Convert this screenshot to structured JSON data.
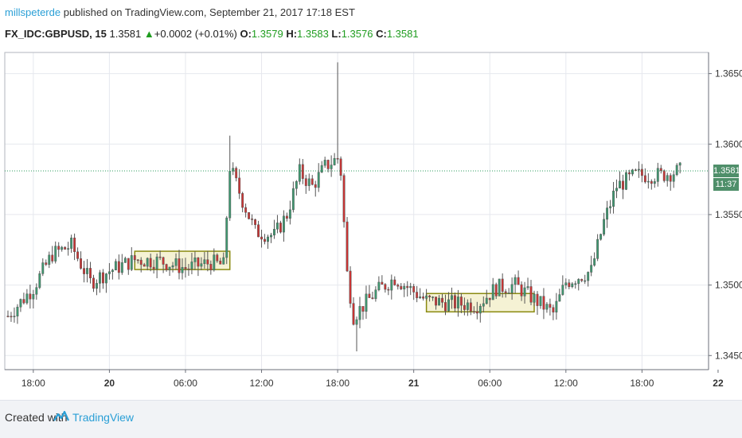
{
  "header": {
    "author": "millspeterde",
    "published_text": "published on TradingView.com, September 21, 2017 17:18 EST",
    "symbol": "FX_IDC:GBPUSD, 15",
    "last_price": "1.3581",
    "change_arrow": "▲",
    "change": "+0.0002 (+0.01%)",
    "o_label": "O:",
    "o_value": "1.3579",
    "h_label": "H:",
    "h_value": "1.3583",
    "l_label": "L:",
    "l_value": "1.3576",
    "c_label": "C:",
    "c_value": "1.3581"
  },
  "price_tag": "1.3581",
  "time_tag": "11:37",
  "footer": {
    "created_with": "Created with",
    "brand": "TradingView",
    "logo_icon": "tradingview-logo-icon"
  },
  "colors": {
    "up": "#3d9970",
    "down": "#cc3333",
    "box_fill": "#f3efc9",
    "box_stroke": "#8a8a10",
    "tag": "#4f8f6a"
  },
  "chart_data": {
    "type": "candlestick",
    "title": "",
    "xlabel": "",
    "ylabel": "",
    "ylim": [
      1.344,
      1.3665
    ],
    "y_ticks": [
      "1.3450",
      "1.3500",
      "1.3550",
      "1.3600",
      "1.3650"
    ],
    "x_ticks": [
      "18:00",
      "20",
      "06:00",
      "12:00",
      "18:00",
      "21",
      "06:00",
      "12:00",
      "18:00",
      "22"
    ],
    "grid": true,
    "current_price_line": 1.3581,
    "boxes": [
      {
        "start": "Sep 20 02:00",
        "end": "Sep 20 09:30",
        "low": 1.3511,
        "high": 1.3524
      },
      {
        "start": "Sep 21 01:00",
        "end": "Sep 21 09:30",
        "low": 1.3481,
        "high": 1.3494
      }
    ],
    "path": [
      {
        "t": "Sep 19 16:00",
        "p": 1.3478
      },
      {
        "t": "Sep 19 18:00",
        "p": 1.3498
      },
      {
        "t": "Sep 19 19:30",
        "p": 1.3522
      },
      {
        "t": "Sep 19 21:00",
        "p": 1.3528
      },
      {
        "t": "Sep 19 22:30",
        "p": 1.3502
      },
      {
        "t": "Sep 20 00:00",
        "p": 1.351
      },
      {
        "t": "Sep 20 02:00",
        "p": 1.3518
      },
      {
        "t": "Sep 20 04:00",
        "p": 1.3517
      },
      {
        "t": "Sep 20 06:00",
        "p": 1.3512
      },
      {
        "t": "Sep 20 08:00",
        "p": 1.3516
      },
      {
        "t": "Sep 20 09:00",
        "p": 1.3514
      },
      {
        "t": "Sep 20 09:30",
        "p": 1.3584
      },
      {
        "t": "Sep 20 10:30",
        "p": 1.356
      },
      {
        "t": "Sep 20 11:30",
        "p": 1.3538
      },
      {
        "t": "Sep 20 13:00",
        "p": 1.3535
      },
      {
        "t": "Sep 20 14:00",
        "p": 1.355
      },
      {
        "t": "Sep 20 15:00",
        "p": 1.358
      },
      {
        "t": "Sep 20 16:00",
        "p": 1.357
      },
      {
        "t": "Sep 20 17:00",
        "p": 1.3584
      },
      {
        "t": "Sep 20 18:00",
        "p": 1.359
      },
      {
        "t": "Sep 20 18:15",
        "p": 1.358
      },
      {
        "t": "Sep 20 18:45",
        "p": 1.3508
      },
      {
        "t": "Sep 20 19:15",
        "p": 1.3478
      },
      {
        "t": "Sep 20 21:00",
        "p": 1.3495
      },
      {
        "t": "Sep 20 22:30",
        "p": 1.3505
      },
      {
        "t": "Sep 21 01:00",
        "p": 1.3489
      },
      {
        "t": "Sep 21 03:00",
        "p": 1.3487
      },
      {
        "t": "Sep 21 05:00",
        "p": 1.3486
      },
      {
        "t": "Sep 21 06:30",
        "p": 1.3498
      },
      {
        "t": "Sep 21 08:00",
        "p": 1.35
      },
      {
        "t": "Sep 21 09:30",
        "p": 1.349
      },
      {
        "t": "Sep 21 11:00",
        "p": 1.348
      },
      {
        "t": "Sep 21 12:00",
        "p": 1.3502
      },
      {
        "t": "Sep 21 14:00",
        "p": 1.351
      },
      {
        "t": "Sep 21 15:00",
        "p": 1.3545
      },
      {
        "t": "Sep 21 16:00",
        "p": 1.357
      },
      {
        "t": "Sep 21 17:30",
        "p": 1.3578
      },
      {
        "t": "Sep 21 19:30",
        "p": 1.3578
      },
      {
        "t": "Sep 21 21:00",
        "p": 1.3581
      }
    ]
  }
}
